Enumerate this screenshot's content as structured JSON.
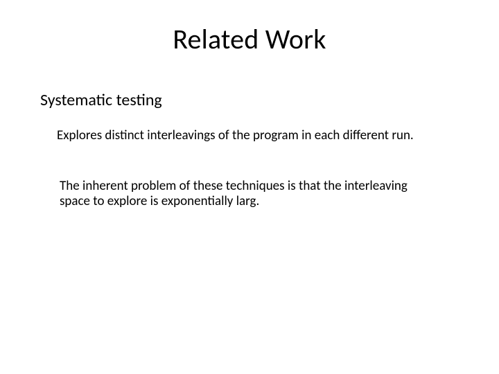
{
  "slide": {
    "title": "Related Work",
    "subheading": "Systematic testing",
    "paragraph1": "Explores distinct interleavings of the program in each different run.",
    "paragraph2": "The inherent problem of these techniques is that the interleaving space to explore is exponentially larg.",
    "background_color": "#ffffff",
    "text_color": "#000000",
    "title_fontsize": 40,
    "subheading_fontsize": 24,
    "body_fontsize": 19,
    "font_family": "Calibri"
  }
}
